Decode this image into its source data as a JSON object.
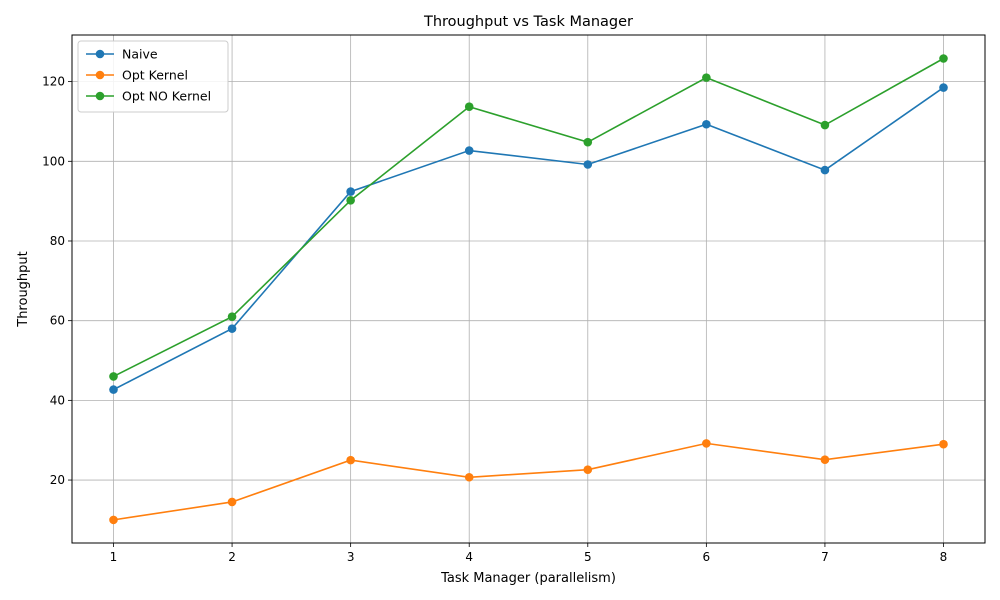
{
  "chart_data": {
    "type": "line",
    "title": "Throughput vs Task Manager",
    "xlabel": "Task Manager (parallelism)",
    "ylabel": "Throughput",
    "x": [
      1,
      2,
      3,
      4,
      5,
      6,
      7,
      8
    ],
    "xlim": [
      0.65,
      8.35
    ],
    "ylim": [
      4.2,
      131.7
    ],
    "xticks": [
      1,
      2,
      3,
      4,
      5,
      6,
      7,
      8
    ],
    "yticks": [
      20,
      40,
      60,
      80,
      100,
      120
    ],
    "grid": true,
    "legend_position": "top-left",
    "markers": "circle",
    "series": [
      {
        "name": "Naive",
        "color": "#1f77b4",
        "values": [
          42.7,
          58.0,
          92.4,
          102.7,
          99.2,
          109.3,
          97.8,
          118.5
        ]
      },
      {
        "name": "Opt Kernel",
        "color": "#ff7f0e",
        "values": [
          10.0,
          14.5,
          25.0,
          20.7,
          22.6,
          29.2,
          25.1,
          29.0
        ]
      },
      {
        "name": "Opt NO Kernel",
        "color": "#2ca02c",
        "values": [
          46.0,
          61.0,
          90.2,
          113.7,
          104.8,
          121.0,
          109.1,
          125.8
        ]
      }
    ]
  }
}
